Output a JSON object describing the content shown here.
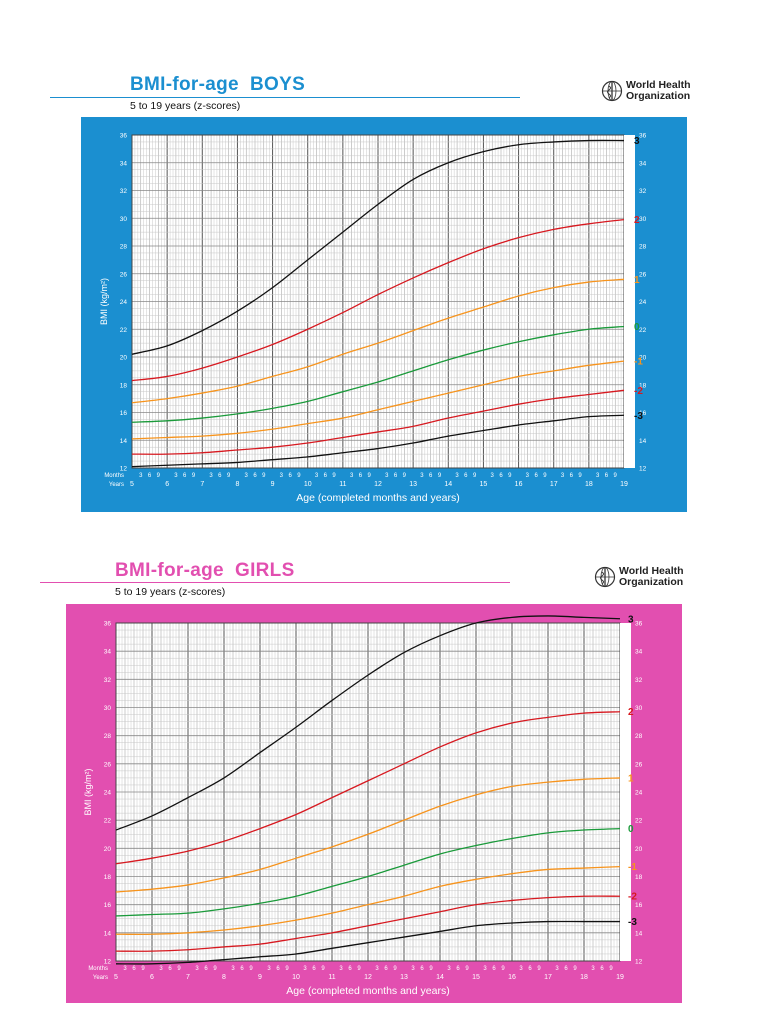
{
  "charts": [
    {
      "id": "boys",
      "title": "BMI-for-age  BOYS",
      "subtitle": "5 to 19 years (z-scores)",
      "org_line1": "World Health",
      "org_line2": "Organization",
      "title_color": "#1b8fd0",
      "rule_color": "#1b8fd0",
      "panel_color": "#1b8fd0"
    },
    {
      "id": "girls",
      "title": "BMI-for-age  GIRLS",
      "subtitle": "5 to 19 years (z-scores)",
      "org_line1": "World Health",
      "org_line2": "Organization",
      "title_color": "#e24fb0",
      "rule_color": "#e24fb0",
      "panel_color": "#e24fb0"
    }
  ],
  "chart_data": [
    {
      "type": "line",
      "title": "BMI-for-age  BOYS",
      "subtitle": "5 to 19 years (z-scores)",
      "xlabel": "Age (completed months and years)",
      "ylabel": "BMI (kg/m²)",
      "row_label_months": "Months",
      "row_label_years": "Years",
      "xlim": [
        5,
        19
      ],
      "ylim": [
        12,
        36
      ],
      "x_ticks": [
        "5",
        "6",
        "7",
        "8",
        "9",
        "10",
        "11",
        "12",
        "13",
        "14",
        "15",
        "16",
        "17",
        "18",
        "19"
      ],
      "month_ticks": [
        "3",
        "6",
        "9"
      ],
      "y_ticks": [
        "12",
        "14",
        "16",
        "18",
        "20",
        "22",
        "24",
        "26",
        "28",
        "30",
        "32",
        "34",
        "36"
      ],
      "grid": true,
      "x": [
        5,
        6,
        7,
        8,
        9,
        10,
        11,
        12,
        13,
        14,
        15,
        16,
        17,
        18,
        19
      ],
      "series": [
        {
          "name": "3",
          "color": "#111111",
          "values": [
            20.2,
            20.8,
            21.9,
            23.3,
            25.0,
            27.0,
            29.0,
            31.0,
            32.8,
            34.0,
            34.8,
            35.3,
            35.5,
            35.6,
            35.6
          ]
        },
        {
          "name": "2",
          "color": "#d71920",
          "values": [
            18.3,
            18.6,
            19.2,
            20.0,
            20.9,
            22.0,
            23.2,
            24.5,
            25.7,
            26.8,
            27.8,
            28.6,
            29.2,
            29.6,
            29.9
          ]
        },
        {
          "name": "1",
          "color": "#f7941d",
          "values": [
            16.7,
            17.0,
            17.4,
            17.9,
            18.6,
            19.3,
            20.2,
            21.0,
            21.9,
            22.8,
            23.6,
            24.4,
            25.0,
            25.4,
            25.6
          ]
        },
        {
          "name": "0",
          "color": "#1a9a3a",
          "values": [
            15.3,
            15.4,
            15.6,
            15.9,
            16.3,
            16.8,
            17.5,
            18.2,
            19.0,
            19.8,
            20.5,
            21.1,
            21.6,
            22.0,
            22.2
          ]
        },
        {
          "name": "-1",
          "color": "#f7941d",
          "values": [
            14.1,
            14.2,
            14.3,
            14.5,
            14.8,
            15.2,
            15.6,
            16.2,
            16.8,
            17.4,
            18.0,
            18.6,
            19.0,
            19.4,
            19.7
          ]
        },
        {
          "name": "-2",
          "color": "#d71920",
          "values": [
            13.0,
            13.0,
            13.1,
            13.3,
            13.5,
            13.8,
            14.2,
            14.6,
            15.0,
            15.6,
            16.1,
            16.6,
            17.0,
            17.3,
            17.6
          ]
        },
        {
          "name": "-3",
          "color": "#111111",
          "values": [
            12.1,
            12.2,
            12.3,
            12.4,
            12.6,
            12.8,
            13.1,
            13.4,
            13.8,
            14.3,
            14.7,
            15.1,
            15.4,
            15.7,
            15.8
          ]
        }
      ]
    },
    {
      "type": "line",
      "title": "BMI-for-age  GIRLS",
      "subtitle": "5 to 19 years (z-scores)",
      "xlabel": "Age (completed months and years)",
      "ylabel": "BMI (kg/m²)",
      "row_label_months": "Months",
      "row_label_years": "Years",
      "xlim": [
        5,
        19
      ],
      "ylim": [
        12,
        36
      ],
      "x_ticks": [
        "5",
        "6",
        "7",
        "8",
        "9",
        "10",
        "11",
        "12",
        "13",
        "14",
        "15",
        "16",
        "17",
        "18",
        "19"
      ],
      "month_ticks": [
        "3",
        "6",
        "9"
      ],
      "y_ticks": [
        "12",
        "14",
        "16",
        "18",
        "20",
        "22",
        "24",
        "26",
        "28",
        "30",
        "32",
        "34",
        "36"
      ],
      "grid": true,
      "x": [
        5,
        6,
        7,
        8,
        9,
        10,
        11,
        12,
        13,
        14,
        15,
        16,
        17,
        18,
        19
      ],
      "series": [
        {
          "name": "3",
          "color": "#111111",
          "values": [
            21.3,
            22.3,
            23.6,
            25.0,
            26.8,
            28.6,
            30.5,
            32.3,
            33.9,
            35.1,
            36.0,
            36.4,
            36.5,
            36.4,
            36.3
          ]
        },
        {
          "name": "2",
          "color": "#d71920",
          "values": [
            18.9,
            19.3,
            19.8,
            20.5,
            21.4,
            22.4,
            23.6,
            24.8,
            26.0,
            27.2,
            28.2,
            28.9,
            29.3,
            29.6,
            29.7
          ]
        },
        {
          "name": "1",
          "color": "#f7941d",
          "values": [
            16.9,
            17.1,
            17.4,
            17.9,
            18.5,
            19.3,
            20.1,
            21.0,
            22.0,
            23.0,
            23.8,
            24.4,
            24.7,
            24.9,
            25.0
          ]
        },
        {
          "name": "0",
          "color": "#1a9a3a",
          "values": [
            15.2,
            15.3,
            15.4,
            15.7,
            16.1,
            16.6,
            17.3,
            18.0,
            18.8,
            19.6,
            20.2,
            20.7,
            21.1,
            21.3,
            21.4
          ]
        },
        {
          "name": "-1",
          "color": "#f7941d",
          "values": [
            13.9,
            13.9,
            14.0,
            14.2,
            14.5,
            14.9,
            15.4,
            16.0,
            16.6,
            17.3,
            17.8,
            18.2,
            18.5,
            18.6,
            18.7
          ]
        },
        {
          "name": "-2",
          "color": "#d71920",
          "values": [
            12.7,
            12.7,
            12.8,
            13.0,
            13.2,
            13.6,
            14.0,
            14.5,
            15.0,
            15.5,
            16.0,
            16.3,
            16.5,
            16.6,
            16.6
          ]
        },
        {
          "name": "-3",
          "color": "#111111",
          "values": [
            11.8,
            11.8,
            11.9,
            12.1,
            12.3,
            12.5,
            12.9,
            13.3,
            13.7,
            14.1,
            14.5,
            14.7,
            14.8,
            14.8,
            14.8
          ]
        }
      ]
    }
  ]
}
